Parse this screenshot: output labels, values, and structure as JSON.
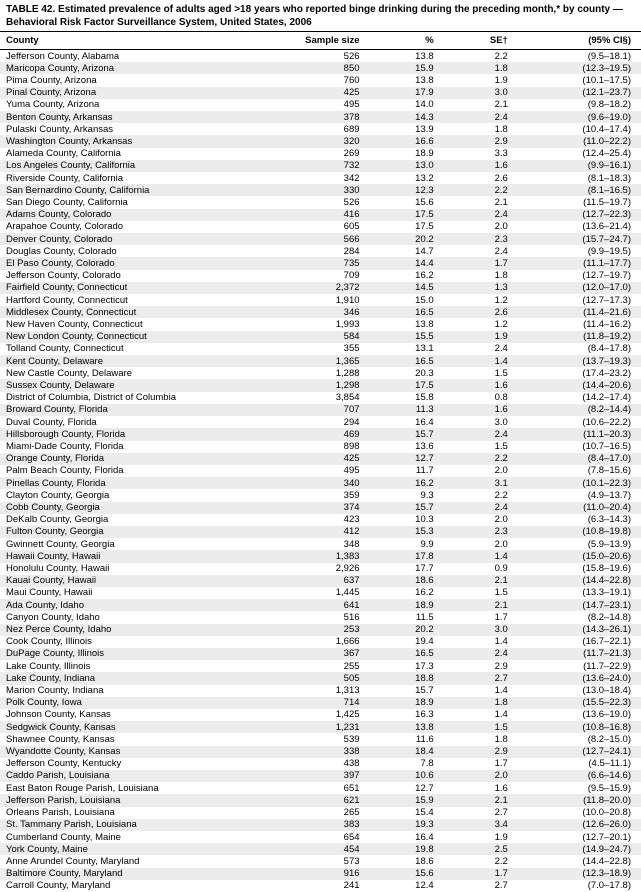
{
  "title": "TABLE 42. Estimated prevalence of adults aged >18 years who reported binge drinking during the preceding month,* by county — Behavioral Risk Factor Surveillance System, United States, 2006",
  "columns": {
    "county": "County",
    "sample": "Sample size",
    "pct": "%",
    "se": "SE†",
    "ci": "(95% CI§)"
  },
  "rows": [
    {
      "county": "Jefferson County, Alabama",
      "sample": "526",
      "pct": "13.8",
      "se": "2.2",
      "ci": "(9.5–18.1)"
    },
    {
      "county": "Maricopa County, Arizona",
      "sample": "850",
      "pct": "15.9",
      "se": "1.8",
      "ci": "(12.3–19.5)"
    },
    {
      "county": "Pima County, Arizona",
      "sample": "760",
      "pct": "13.8",
      "se": "1.9",
      "ci": "(10.1–17.5)"
    },
    {
      "county": "Pinal County, Arizona",
      "sample": "425",
      "pct": "17.9",
      "se": "3.0",
      "ci": "(12.1–23.7)"
    },
    {
      "county": "Yuma County, Arizona",
      "sample": "495",
      "pct": "14.0",
      "se": "2.1",
      "ci": "(9.8–18.2)"
    },
    {
      "county": "Benton County, Arkansas",
      "sample": "378",
      "pct": "14.3",
      "se": "2.4",
      "ci": "(9.6–19.0)"
    },
    {
      "county": "Pulaski County, Arkansas",
      "sample": "689",
      "pct": "13.9",
      "se": "1.8",
      "ci": "(10.4–17.4)"
    },
    {
      "county": "Washington County, Arkansas",
      "sample": "320",
      "pct": "16.6",
      "se": "2.9",
      "ci": "(11.0–22.2)"
    },
    {
      "county": "Alameda County, California",
      "sample": "269",
      "pct": "18.9",
      "se": "3.3",
      "ci": "(12.4–25.4)"
    },
    {
      "county": "Los Angeles County, California",
      "sample": "732",
      "pct": "13.0",
      "se": "1.6",
      "ci": "(9.9–16.1)"
    },
    {
      "county": "Riverside County, California",
      "sample": "342",
      "pct": "13.2",
      "se": "2.6",
      "ci": "(8.1–18.3)"
    },
    {
      "county": "San Bernardino County, California",
      "sample": "330",
      "pct": "12.3",
      "se": "2.2",
      "ci": "(8.1–16.5)"
    },
    {
      "county": "San Diego County, California",
      "sample": "526",
      "pct": "15.6",
      "se": "2.1",
      "ci": "(11.5–19.7)"
    },
    {
      "county": "Adams County, Colorado",
      "sample": "416",
      "pct": "17.5",
      "se": "2.4",
      "ci": "(12.7–22.3)"
    },
    {
      "county": "Arapahoe County, Colorado",
      "sample": "605",
      "pct": "17.5",
      "se": "2.0",
      "ci": "(13.6–21.4)"
    },
    {
      "county": "Denver County, Colorado",
      "sample": "566",
      "pct": "20.2",
      "se": "2.3",
      "ci": "(15.7–24.7)"
    },
    {
      "county": "Douglas County, Colorado",
      "sample": "284",
      "pct": "14.7",
      "se": "2.4",
      "ci": "(9.9–19.5)"
    },
    {
      "county": "El Paso County, Colorado",
      "sample": "735",
      "pct": "14.4",
      "se": "1.7",
      "ci": "(11.1–17.7)"
    },
    {
      "county": "Jefferson County, Colorado",
      "sample": "709",
      "pct": "16.2",
      "se": "1.8",
      "ci": "(12.7–19.7)"
    },
    {
      "county": "Fairfield County, Connecticut",
      "sample": "2,372",
      "pct": "14.5",
      "se": "1.3",
      "ci": "(12.0–17.0)"
    },
    {
      "county": "Hartford County, Connecticut",
      "sample": "1,910",
      "pct": "15.0",
      "se": "1.2",
      "ci": "(12.7–17.3)"
    },
    {
      "county": "Middlesex County, Connecticut",
      "sample": "346",
      "pct": "16.5",
      "se": "2.6",
      "ci": "(11.4–21.6)"
    },
    {
      "county": "New Haven County, Connecticut",
      "sample": "1,993",
      "pct": "13.8",
      "se": "1.2",
      "ci": "(11.4–16.2)"
    },
    {
      "county": "New London County, Connecticut",
      "sample": "584",
      "pct": "15.5",
      "se": "1.9",
      "ci": "(11.8–19.2)"
    },
    {
      "county": "Tolland County, Connecticut",
      "sample": "355",
      "pct": "13.1",
      "se": "2.4",
      "ci": "(8.4–17.8)"
    },
    {
      "county": "Kent County, Delaware",
      "sample": "1,365",
      "pct": "16.5",
      "se": "1.4",
      "ci": "(13.7–19.3)"
    },
    {
      "county": "New Castle County, Delaware",
      "sample": "1,288",
      "pct": "20.3",
      "se": "1.5",
      "ci": "(17.4–23.2)"
    },
    {
      "county": "Sussex County, Delaware",
      "sample": "1,298",
      "pct": "17.5",
      "se": "1.6",
      "ci": "(14.4–20.6)"
    },
    {
      "county": "District of Columbia, District of Columbia",
      "sample": "3,854",
      "pct": "15.8",
      "se": "0.8",
      "ci": "(14.2–17.4)"
    },
    {
      "county": "Broward County, Florida",
      "sample": "707",
      "pct": "11.3",
      "se": "1.6",
      "ci": "(8.2–14.4)"
    },
    {
      "county": "Duval County, Florida",
      "sample": "294",
      "pct": "16.4",
      "se": "3.0",
      "ci": "(10.6–22.2)"
    },
    {
      "county": "Hillsborough County, Florida",
      "sample": "469",
      "pct": "15.7",
      "se": "2.4",
      "ci": "(11.1–20.3)"
    },
    {
      "county": "Miami-Dade County, Florida",
      "sample": "898",
      "pct": "13.6",
      "se": "1.5",
      "ci": "(10.7–16.5)"
    },
    {
      "county": "Orange County, Florida",
      "sample": "425",
      "pct": "12.7",
      "se": "2.2",
      "ci": "(8.4–17.0)"
    },
    {
      "county": "Palm Beach County, Florida",
      "sample": "495",
      "pct": "11.7",
      "se": "2.0",
      "ci": "(7.8–15.6)"
    },
    {
      "county": "Pinellas County, Florida",
      "sample": "340",
      "pct": "16.2",
      "se": "3.1",
      "ci": "(10.1–22.3)"
    },
    {
      "county": "Clayton County, Georgia",
      "sample": "359",
      "pct": "9.3",
      "se": "2.2",
      "ci": "(4.9–13.7)"
    },
    {
      "county": "Cobb County, Georgia",
      "sample": "374",
      "pct": "15.7",
      "se": "2.4",
      "ci": "(11.0–20.4)"
    },
    {
      "county": "DeKalb County, Georgia",
      "sample": "423",
      "pct": "10.3",
      "se": "2.0",
      "ci": "(6.3–14.3)"
    },
    {
      "county": "Fulton County, Georgia",
      "sample": "412",
      "pct": "15.3",
      "se": "2.3",
      "ci": "(10.8–19.8)"
    },
    {
      "county": "Gwinnett County, Georgia",
      "sample": "348",
      "pct": "9.9",
      "se": "2.0",
      "ci": "(5.9–13.9)"
    },
    {
      "county": "Hawaii County, Hawaii",
      "sample": "1,383",
      "pct": "17.8",
      "se": "1.4",
      "ci": "(15.0–20.6)"
    },
    {
      "county": "Honolulu County, Hawaii",
      "sample": "2,926",
      "pct": "17.7",
      "se": "0.9",
      "ci": "(15.8–19.6)"
    },
    {
      "county": "Kauai County, Hawaii",
      "sample": "637",
      "pct": "18.6",
      "se": "2.1",
      "ci": "(14.4–22.8)"
    },
    {
      "county": "Maui County, Hawaii",
      "sample": "1,445",
      "pct": "16.2",
      "se": "1.5",
      "ci": "(13.3–19.1)"
    },
    {
      "county": "Ada County, Idaho",
      "sample": "641",
      "pct": "18.9",
      "se": "2.1",
      "ci": "(14.7–23.1)"
    },
    {
      "county": "Canyon County, Idaho",
      "sample": "516",
      "pct": "11.5",
      "se": "1.7",
      "ci": "(8.2–14.8)"
    },
    {
      "county": "Nez Perce County, Idaho",
      "sample": "253",
      "pct": "20.2",
      "se": "3.0",
      "ci": "(14.3–26.1)"
    },
    {
      "county": "Cook County, Illinois",
      "sample": "1,666",
      "pct": "19.4",
      "se": "1.4",
      "ci": "(16.7–22.1)"
    },
    {
      "county": "DuPage County, Illinois",
      "sample": "367",
      "pct": "16.5",
      "se": "2.4",
      "ci": "(11.7–21.3)"
    },
    {
      "county": "Lake County, Illinois",
      "sample": "255",
      "pct": "17.3",
      "se": "2.9",
      "ci": "(11.7–22.9)"
    },
    {
      "county": "Lake County, Indiana",
      "sample": "505",
      "pct": "18.8",
      "se": "2.7",
      "ci": "(13.6–24.0)"
    },
    {
      "county": "Marion County, Indiana",
      "sample": "1,313",
      "pct": "15.7",
      "se": "1.4",
      "ci": "(13.0–18.4)"
    },
    {
      "county": "Polk County, Iowa",
      "sample": "714",
      "pct": "18.9",
      "se": "1.8",
      "ci": "(15.5–22.3)"
    },
    {
      "county": "Johnson County, Kansas",
      "sample": "1,425",
      "pct": "16.3",
      "se": "1.4",
      "ci": "(13.6–19.0)"
    },
    {
      "county": "Sedgwick County, Kansas",
      "sample": "1,231",
      "pct": "13.8",
      "se": "1.5",
      "ci": "(10.8–16.8)"
    },
    {
      "county": "Shawnee County, Kansas",
      "sample": "539",
      "pct": "11.6",
      "se": "1.8",
      "ci": "(8.2–15.0)"
    },
    {
      "county": "Wyandotte County, Kansas",
      "sample": "338",
      "pct": "18.4",
      "se": "2.9",
      "ci": "(12.7–24.1)"
    },
    {
      "county": "Jefferson County, Kentucky",
      "sample": "438",
      "pct": "7.8",
      "se": "1.7",
      "ci": "(4.5–11.1)"
    },
    {
      "county": "Caddo Parish, Louisiana",
      "sample": "397",
      "pct": "10.6",
      "se": "2.0",
      "ci": "(6.6–14.6)"
    },
    {
      "county": "East Baton Rouge Parish, Louisiana",
      "sample": "651",
      "pct": "12.7",
      "se": "1.6",
      "ci": "(9.5–15.9)"
    },
    {
      "county": "Jefferson Parish, Louisiana",
      "sample": "621",
      "pct": "15.9",
      "se": "2.1",
      "ci": "(11.8–20.0)"
    },
    {
      "county": "Orleans Parish, Louisiana",
      "sample": "265",
      "pct": "15.4",
      "se": "2.7",
      "ci": "(10.0–20.8)"
    },
    {
      "county": "St. Tammany Parish, Louisiana",
      "sample": "383",
      "pct": "19.3",
      "se": "3.4",
      "ci": "(12.6–26.0)"
    },
    {
      "county": "Cumberland County, Maine",
      "sample": "654",
      "pct": "16.4",
      "se": "1.9",
      "ci": "(12.7–20.1)"
    },
    {
      "county": "York County, Maine",
      "sample": "454",
      "pct": "19.8",
      "se": "2.5",
      "ci": "(14.9–24.7)"
    },
    {
      "county": "Anne Arundel County, Maryland",
      "sample": "573",
      "pct": "18.6",
      "se": "2.2",
      "ci": "(14.4–22.8)"
    },
    {
      "county": "Baltimore County, Maryland",
      "sample": "916",
      "pct": "15.6",
      "se": "1.7",
      "ci": "(12.3–18.9)"
    },
    {
      "county": "Carroll County, Maryland",
      "sample": "241",
      "pct": "12.4",
      "se": "2.7",
      "ci": "(7.0–17.8)"
    }
  ]
}
